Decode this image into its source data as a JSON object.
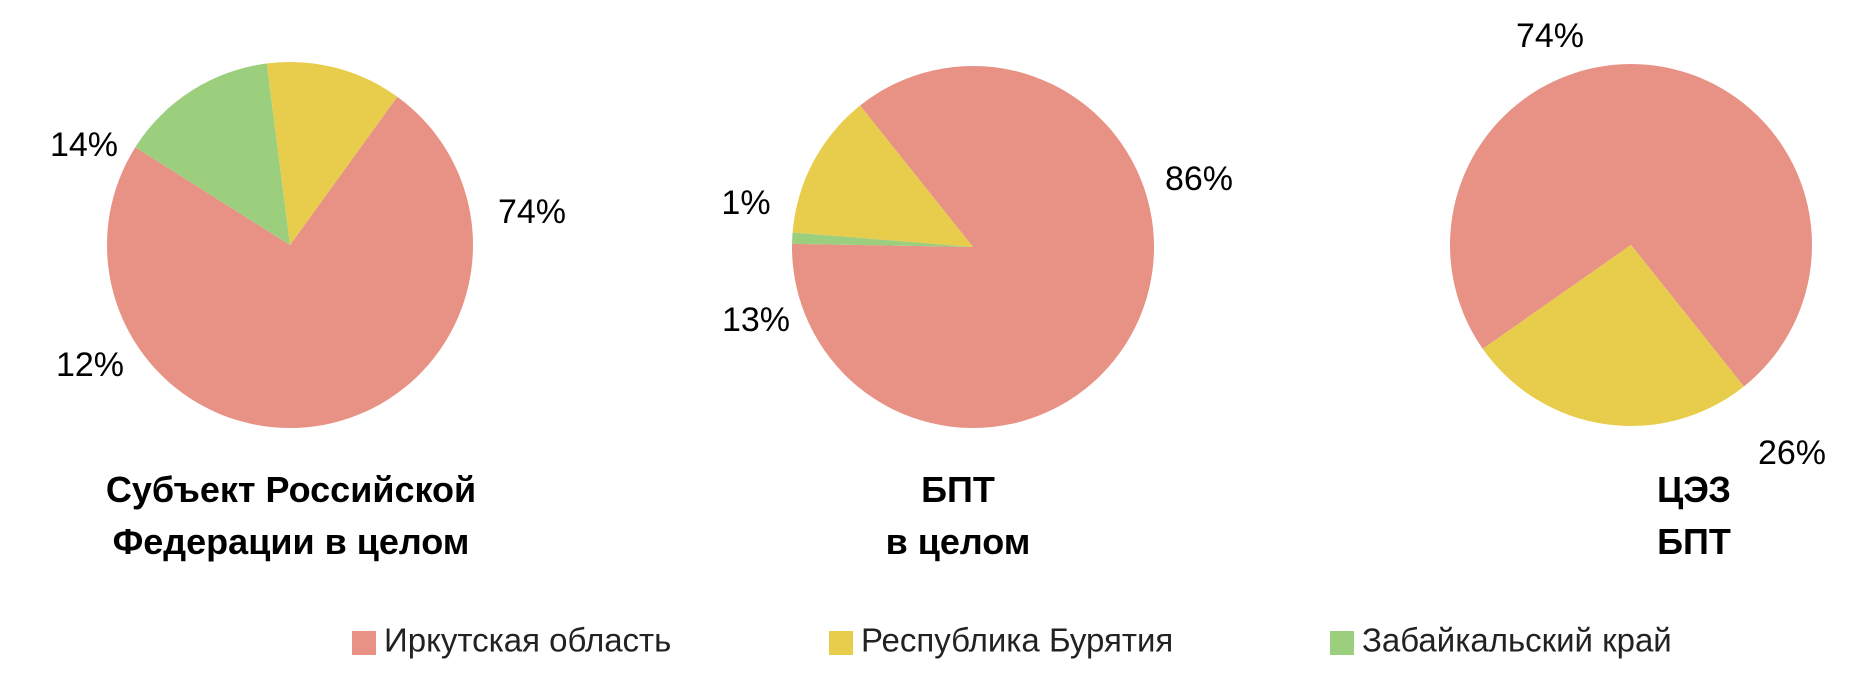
{
  "chart_data": {
    "type": "pie",
    "colors": {
      "Иркутская область": "#e79284",
      "Республика Бурятия": "#e8cd4d",
      "Забайкальский край": "#9ccf7d"
    },
    "legend": {
      "position": "bottom",
      "entries": [
        "Иркутская область",
        "Республика Бурятия",
        "Забайкальский край"
      ]
    },
    "charts": [
      {
        "title": [
          "Субъект Российской",
          "Федерации в целом"
        ],
        "slices": [
          {
            "label": "Иркутская область",
            "value": 74,
            "text": "74%"
          },
          {
            "label": "Республика Бурятия",
            "value": 12,
            "text": "12%"
          },
          {
            "label": "Забайкальский край",
            "value": 14,
            "text": "14%"
          }
        ]
      },
      {
        "title": [
          "БПТ",
          "в целом"
        ],
        "slices": [
          {
            "label": "Иркутская область",
            "value": 86,
            "text": "86%"
          },
          {
            "label": "Республика Бурятия",
            "value": 13,
            "text": "13%"
          },
          {
            "label": "Забайкальский край",
            "value": 1,
            "text": "1%"
          }
        ]
      },
      {
        "title": [
          "ЦЭЗ",
          "БПТ"
        ],
        "slices": [
          {
            "label": "Иркутская область",
            "value": 74,
            "text": "74%"
          },
          {
            "label": "Республика Бурятия",
            "value": 26,
            "text": "26%"
          }
        ]
      }
    ]
  }
}
